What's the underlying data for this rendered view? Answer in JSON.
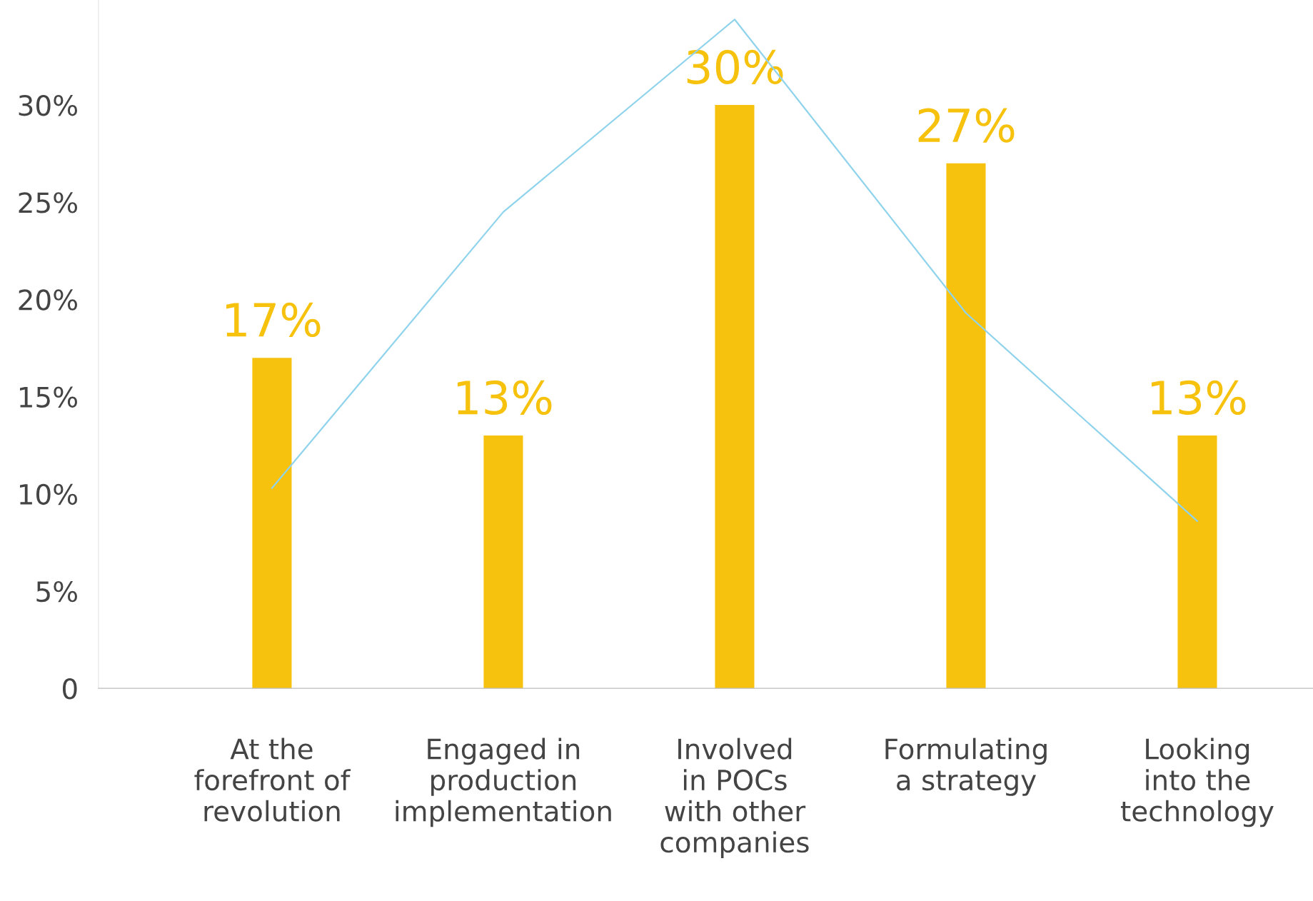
{
  "chart_data": {
    "type": "bar",
    "categories": [
      "At the\nforefront of\nrevolution",
      "Engaged in\nproduction\nimplementation",
      "Involved\nin POCs\nwith other\ncompanies",
      "Formulating\na strategy",
      "Looking\ninto the\ntechnology"
    ],
    "series": [
      {
        "color": "#f6c20e",
        "values": [
          17,
          13,
          30,
          27,
          13
        ],
        "value_labels": [
          "17%",
          "13%",
          "30%",
          "27%",
          "13%"
        ]
      },
      {
        "type": "line",
        "color": "#8fd3ec",
        "values": [
          10.3,
          24.5,
          34.4,
          19.3,
          8.6
        ]
      }
    ],
    "ylim": [
      0,
      35.4
    ],
    "yticks": [
      {
        "value": 0,
        "label": "0"
      },
      {
        "value": 5,
        "label": "5%"
      },
      {
        "value": 10,
        "label": "10%"
      },
      {
        "value": 15,
        "label": "15%"
      },
      {
        "value": 20,
        "label": "20%"
      },
      {
        "value": 25,
        "label": "25%"
      },
      {
        "value": 30,
        "label": "30%"
      }
    ],
    "grid": false,
    "legend": false
  }
}
